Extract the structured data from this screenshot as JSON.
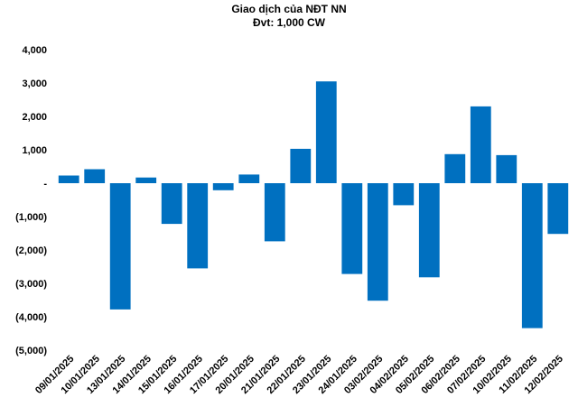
{
  "chart_data": {
    "type": "bar",
    "title": "Giao dịch của NĐT NN",
    "subtitle": "Đvt: 1,000 CW",
    "xlabel": "",
    "ylabel": "",
    "ylim": [
      -5000,
      4000
    ],
    "yticks": [
      4000,
      3000,
      2000,
      1000,
      0,
      -1000,
      -2000,
      -3000,
      -4000,
      -5000
    ],
    "ytick_labels": [
      "4,000",
      "3,000",
      "2,000",
      "1,000",
      "-",
      "(1,000)",
      "(2,000)",
      "(3,000)",
      "(4,000)",
      "(5,000)"
    ],
    "grid": false,
    "legend": "none",
    "categories": [
      "09/01/2025",
      "10/01/2025",
      "13/01/2025",
      "14/01/2025",
      "15/01/2025",
      "16/01/2025",
      "17/01/2025",
      "20/01/2025",
      "21/01/2025",
      "22/01/2025",
      "23/01/2025",
      "24/01/2025",
      "03/02/2025",
      "04/02/2025",
      "05/02/2025",
      "06/02/2025",
      "07/02/2025",
      "10/02/2025",
      "11/02/2025",
      "12/02/2025"
    ],
    "values": [
      230,
      420,
      -3780,
      170,
      -1220,
      -2550,
      -210,
      260,
      -1740,
      1030,
      3050,
      -2720,
      -3520,
      -660,
      -2820,
      870,
      2300,
      840,
      -4340,
      -1520
    ],
    "bar_color": "#0070C0"
  }
}
